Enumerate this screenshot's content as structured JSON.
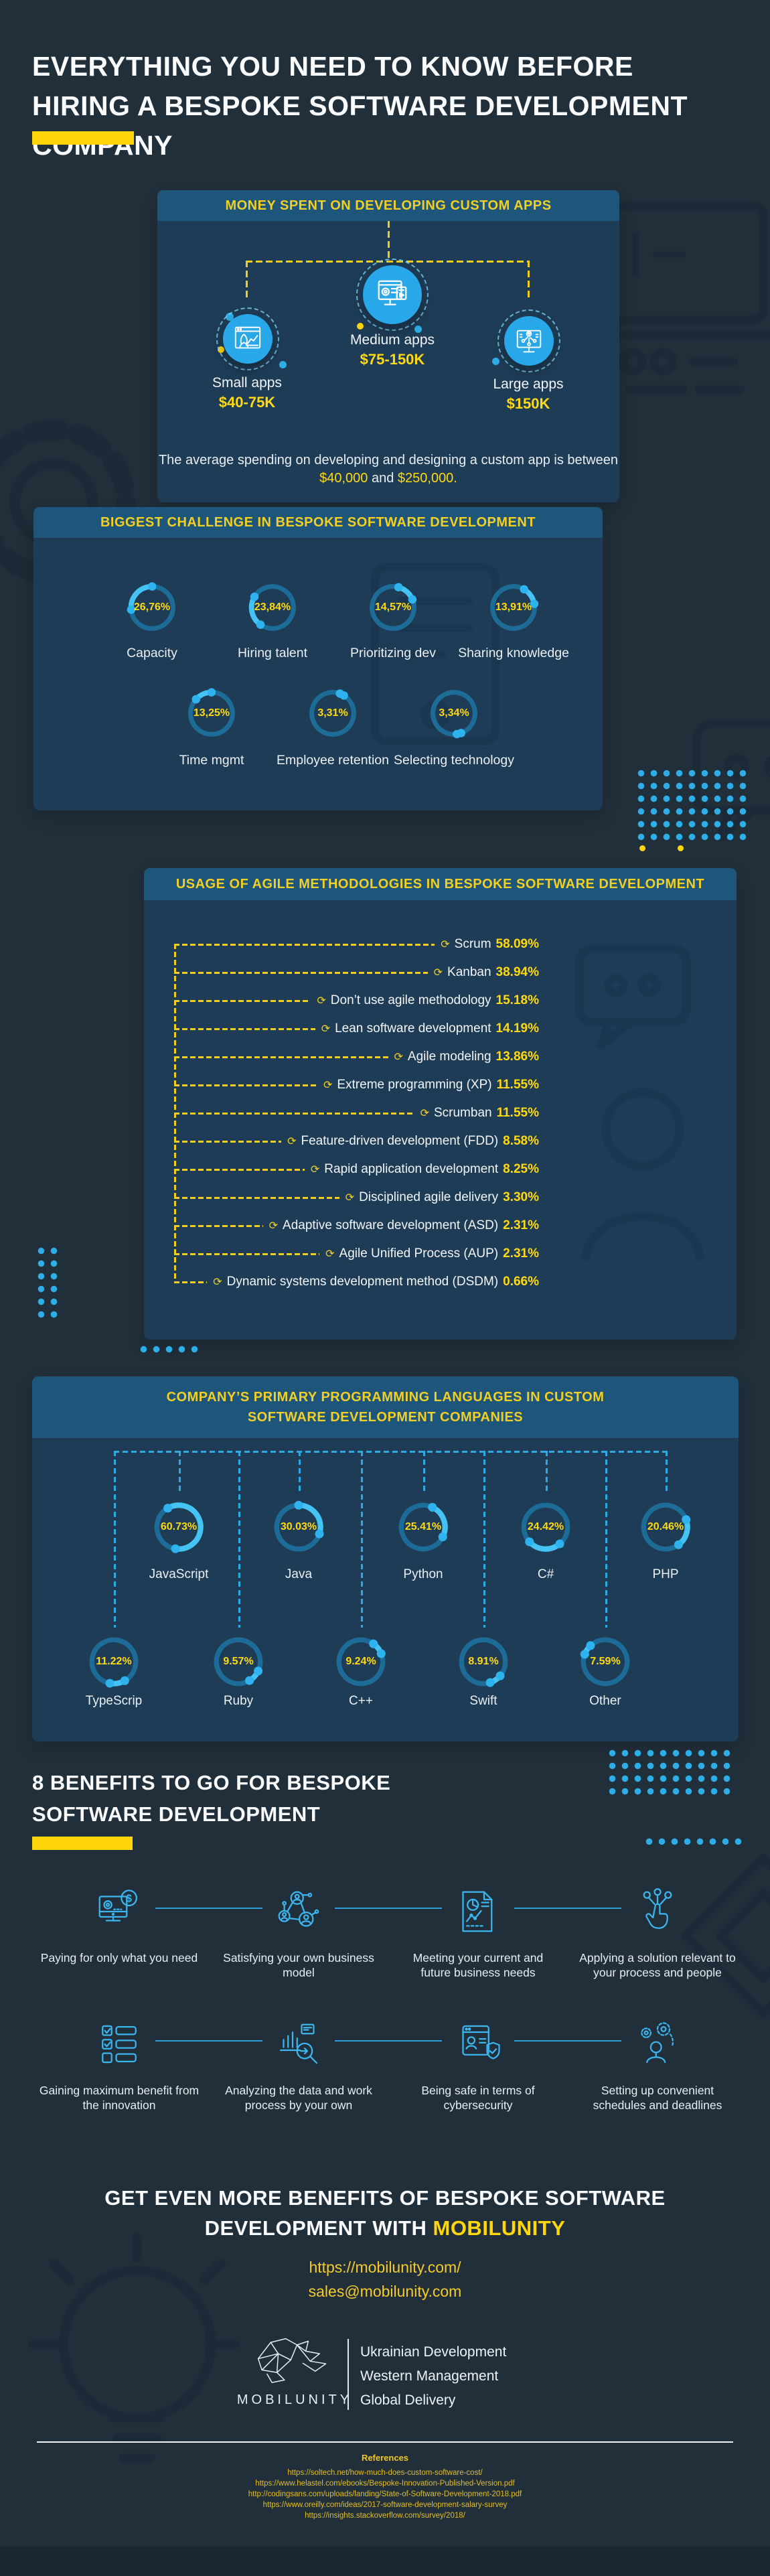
{
  "colors": {
    "background": "#212F3B",
    "panel": "#1E3C55",
    "panel_header": "#1D567A",
    "accent_yellow": "#FFD60A",
    "heading_yellow": "#F2CF25",
    "value_yellow": "#FFD913",
    "accent_blue": "#2FB3EF",
    "donut_track": "#1D6C98",
    "circle_blue": "#29A8E9"
  },
  "title": {
    "text": "EVERYTHING YOU NEED TO KNOW BEFORE HIRING A BESPOKE SOFTWARE DEVELOPMENT COMPANY"
  },
  "money": {
    "header": "MONEY SPENT ON DEVELOPING CUSTOM APPS",
    "items": [
      {
        "label": "Small apps",
        "value": "$40-75K",
        "icon": "small-app-rocket-icon"
      },
      {
        "label": "Medium apps",
        "value": "$75-150K",
        "icon": "medium-app-monitor-gear-icon"
      },
      {
        "label": "Large apps",
        "value": "$150K",
        "icon": "large-app-monitor-network-icon"
      }
    ],
    "note": {
      "prefix": "The average spending on developing and designing a custom app is between",
      "low": "$40,000",
      "mid": " and ",
      "high": "$250,000."
    }
  },
  "chart_data": [
    {
      "type": "pie",
      "title": "BIGGEST CHALLENGE IN BESPOKE SOFTWARE DEVELOPMENT",
      "categories": [
        "Capacity",
        "Hiring talent",
        "Prioritizing dev",
        "Sharing knowledge",
        "Time mgmt",
        "Employee retention",
        "Selecting technology"
      ],
      "values": [
        26.76,
        23.84,
        14.57,
        13.91,
        13.25,
        3.31,
        3.34
      ]
    },
    {
      "type": "bar",
      "title": "USAGE OF AGILE METHODOLOGIES IN BESPOKE SOFTWARE DEVELOPMENT",
      "categories": [
        "Scrum",
        "Kanban",
        "Don’t use agile methodology",
        "Lean software development",
        "Agile modeling",
        "Extreme programming (XP)",
        "Scrumban",
        "Feature-driven development (FDD)",
        "Rapid application development",
        "Disciplined agile delivery",
        "Adaptive software development (ASD)",
        "Agile Unified Process (AUP)",
        "Dynamic systems development method (DSDM)"
      ],
      "values": [
        58.09,
        38.94,
        15.18,
        14.19,
        13.86,
        11.55,
        11.55,
        8.58,
        8.25,
        3.3,
        2.31,
        2.31,
        0.66
      ]
    },
    {
      "type": "pie",
      "title": "COMPANY’S PRIMARY PROGRAMMING LANGUAGES IN CUSTOM SOFTWARE DEVELOPMENT COMPANIES",
      "categories": [
        "JavaScript",
        "Java",
        "Python",
        "C#",
        "PHP",
        "TypeScrip",
        "Ruby",
        "C++",
        "Swift",
        "Other"
      ],
      "values": [
        60.73,
        30.03,
        25.41,
        24.42,
        20.46,
        11.22,
        9.57,
        9.24,
        8.91,
        7.59
      ]
    }
  ],
  "challenges": {
    "header": "BIGGEST CHALLENGE IN BESPOKE SOFTWARE DEVELOPMENT",
    "items": [
      {
        "label": "Capacity",
        "value": "26,76%",
        "pct": 26.76
      },
      {
        "label": "Hiring talent",
        "value": "23,84%",
        "pct": 23.84
      },
      {
        "label": "Prioritizing dev",
        "value": "14,57%",
        "pct": 14.57
      },
      {
        "label": "Sharing knowledge",
        "value": "13,91%",
        "pct": 13.91
      },
      {
        "label": "Time mgmt",
        "value": "13,25%",
        "pct": 13.25
      },
      {
        "label": "Employee retention",
        "value": "3,31%",
        "pct": 3.31
      },
      {
        "label": "Selecting technology",
        "value": "3,34%",
        "pct": 3.34
      }
    ]
  },
  "agile": {
    "header": "USAGE OF AGILE METHODOLOGIES IN BESPOKE SOFTWARE DEVELOPMENT",
    "items": [
      {
        "label": "Scrum",
        "value": "58.09%"
      },
      {
        "label": "Kanban",
        "value": "38.94%"
      },
      {
        "label": "Don’t use agile methodology",
        "value": "15.18%"
      },
      {
        "label": "Lean software development",
        "value": "14.19%"
      },
      {
        "label": "Agile modeling",
        "value": "13.86%"
      },
      {
        "label": "Extreme programming (XP)",
        "value": "11.55%"
      },
      {
        "label": "Scrumban",
        "value": "11.55%"
      },
      {
        "label": "Feature-driven development (FDD)",
        "value": "8.58%"
      },
      {
        "label": "Rapid application development",
        "value": "8.25%"
      },
      {
        "label": "Disciplined agile delivery",
        "value": "3.30%"
      },
      {
        "label": "Adaptive software development (ASD)",
        "value": "2.31%"
      },
      {
        "label": "Agile Unified Process (AUP)",
        "value": "2.31%"
      },
      {
        "label": "Dynamic systems development method (DSDM)",
        "value": "0.66%"
      }
    ]
  },
  "languages": {
    "header": "COMPANY’S PRIMARY PROGRAMMING LANGUAGES IN CUSTOM SOFTWARE DEVELOPMENT COMPANIES",
    "items": [
      {
        "label": "JavaScript",
        "value": "60.73%",
        "pct": 60.73
      },
      {
        "label": "Java",
        "value": "30.03%",
        "pct": 30.03
      },
      {
        "label": "Python",
        "value": "25.41%",
        "pct": 25.41
      },
      {
        "label": "C#",
        "value": "24.42%",
        "pct": 24.42
      },
      {
        "label": "PHP",
        "value": "20.46%",
        "pct": 20.46
      },
      {
        "label": "TypeScrip",
        "value": "11.22%",
        "pct": 11.22
      },
      {
        "label": "Ruby",
        "value": "9.57%",
        "pct": 9.57
      },
      {
        "label": "C++",
        "value": "9.24%",
        "pct": 9.24
      },
      {
        "label": "Swift",
        "value": "8.91%",
        "pct": 8.91
      },
      {
        "label": "Other",
        "value": "7.59%",
        "pct": 7.59
      }
    ]
  },
  "benefits": {
    "heading": "8 BENEFITS TO GO FOR BESPOKE SOFTWARE DEVELOPMENT",
    "items": [
      {
        "label": "Paying for only what you need",
        "icon": "monitor-dollar-icon"
      },
      {
        "label": "Satisfying your own business model",
        "icon": "people-network-icon"
      },
      {
        "label": "Meeting your current and future business needs",
        "icon": "report-chart-icon"
      },
      {
        "label": "Applying a solution relevant to your process and people",
        "icon": "hand-click-icon"
      },
      {
        "label": "Gaining maximum benefit from the innovation",
        "icon": "checklist-icon"
      },
      {
        "label": "Analyzing the data and work process by your own",
        "icon": "data-analysis-icon"
      },
      {
        "label": "Being safe in terms of cybersecurity",
        "icon": "security-shield-icon"
      },
      {
        "label": "Setting up convenient schedules and deadlines",
        "icon": "person-gears-icon"
      }
    ]
  },
  "cta": {
    "line1": "GET EVEN MORE BENEFITS OF BESPOKE SOFTWARE",
    "line2_prefix": "DEVELOPMENT WITH ",
    "brand": "MOBILUNITY",
    "website": "https://mobilunity.com/",
    "email": "sales@mobilunity.com"
  },
  "logo": {
    "name": "MOBILUNITY",
    "taglines": [
      "Ukrainian Development",
      "Western Management",
      "Global Delivery"
    ]
  },
  "references": {
    "heading": "References",
    "links": [
      "https://soltech.net/how-much-does-custom-software-cost/",
      "https://www.helastel.com/ebooks/Bespoke-Innovation-Published-Version.pdf",
      "http://codingsans.com/uploads/landing/State-of-Software-Development-2018.pdf",
      "https://www.oreilly.com/ideas/2017-software-development-salary-survey",
      "https://insights.stackoverflow.com/survey/2018/"
    ]
  }
}
